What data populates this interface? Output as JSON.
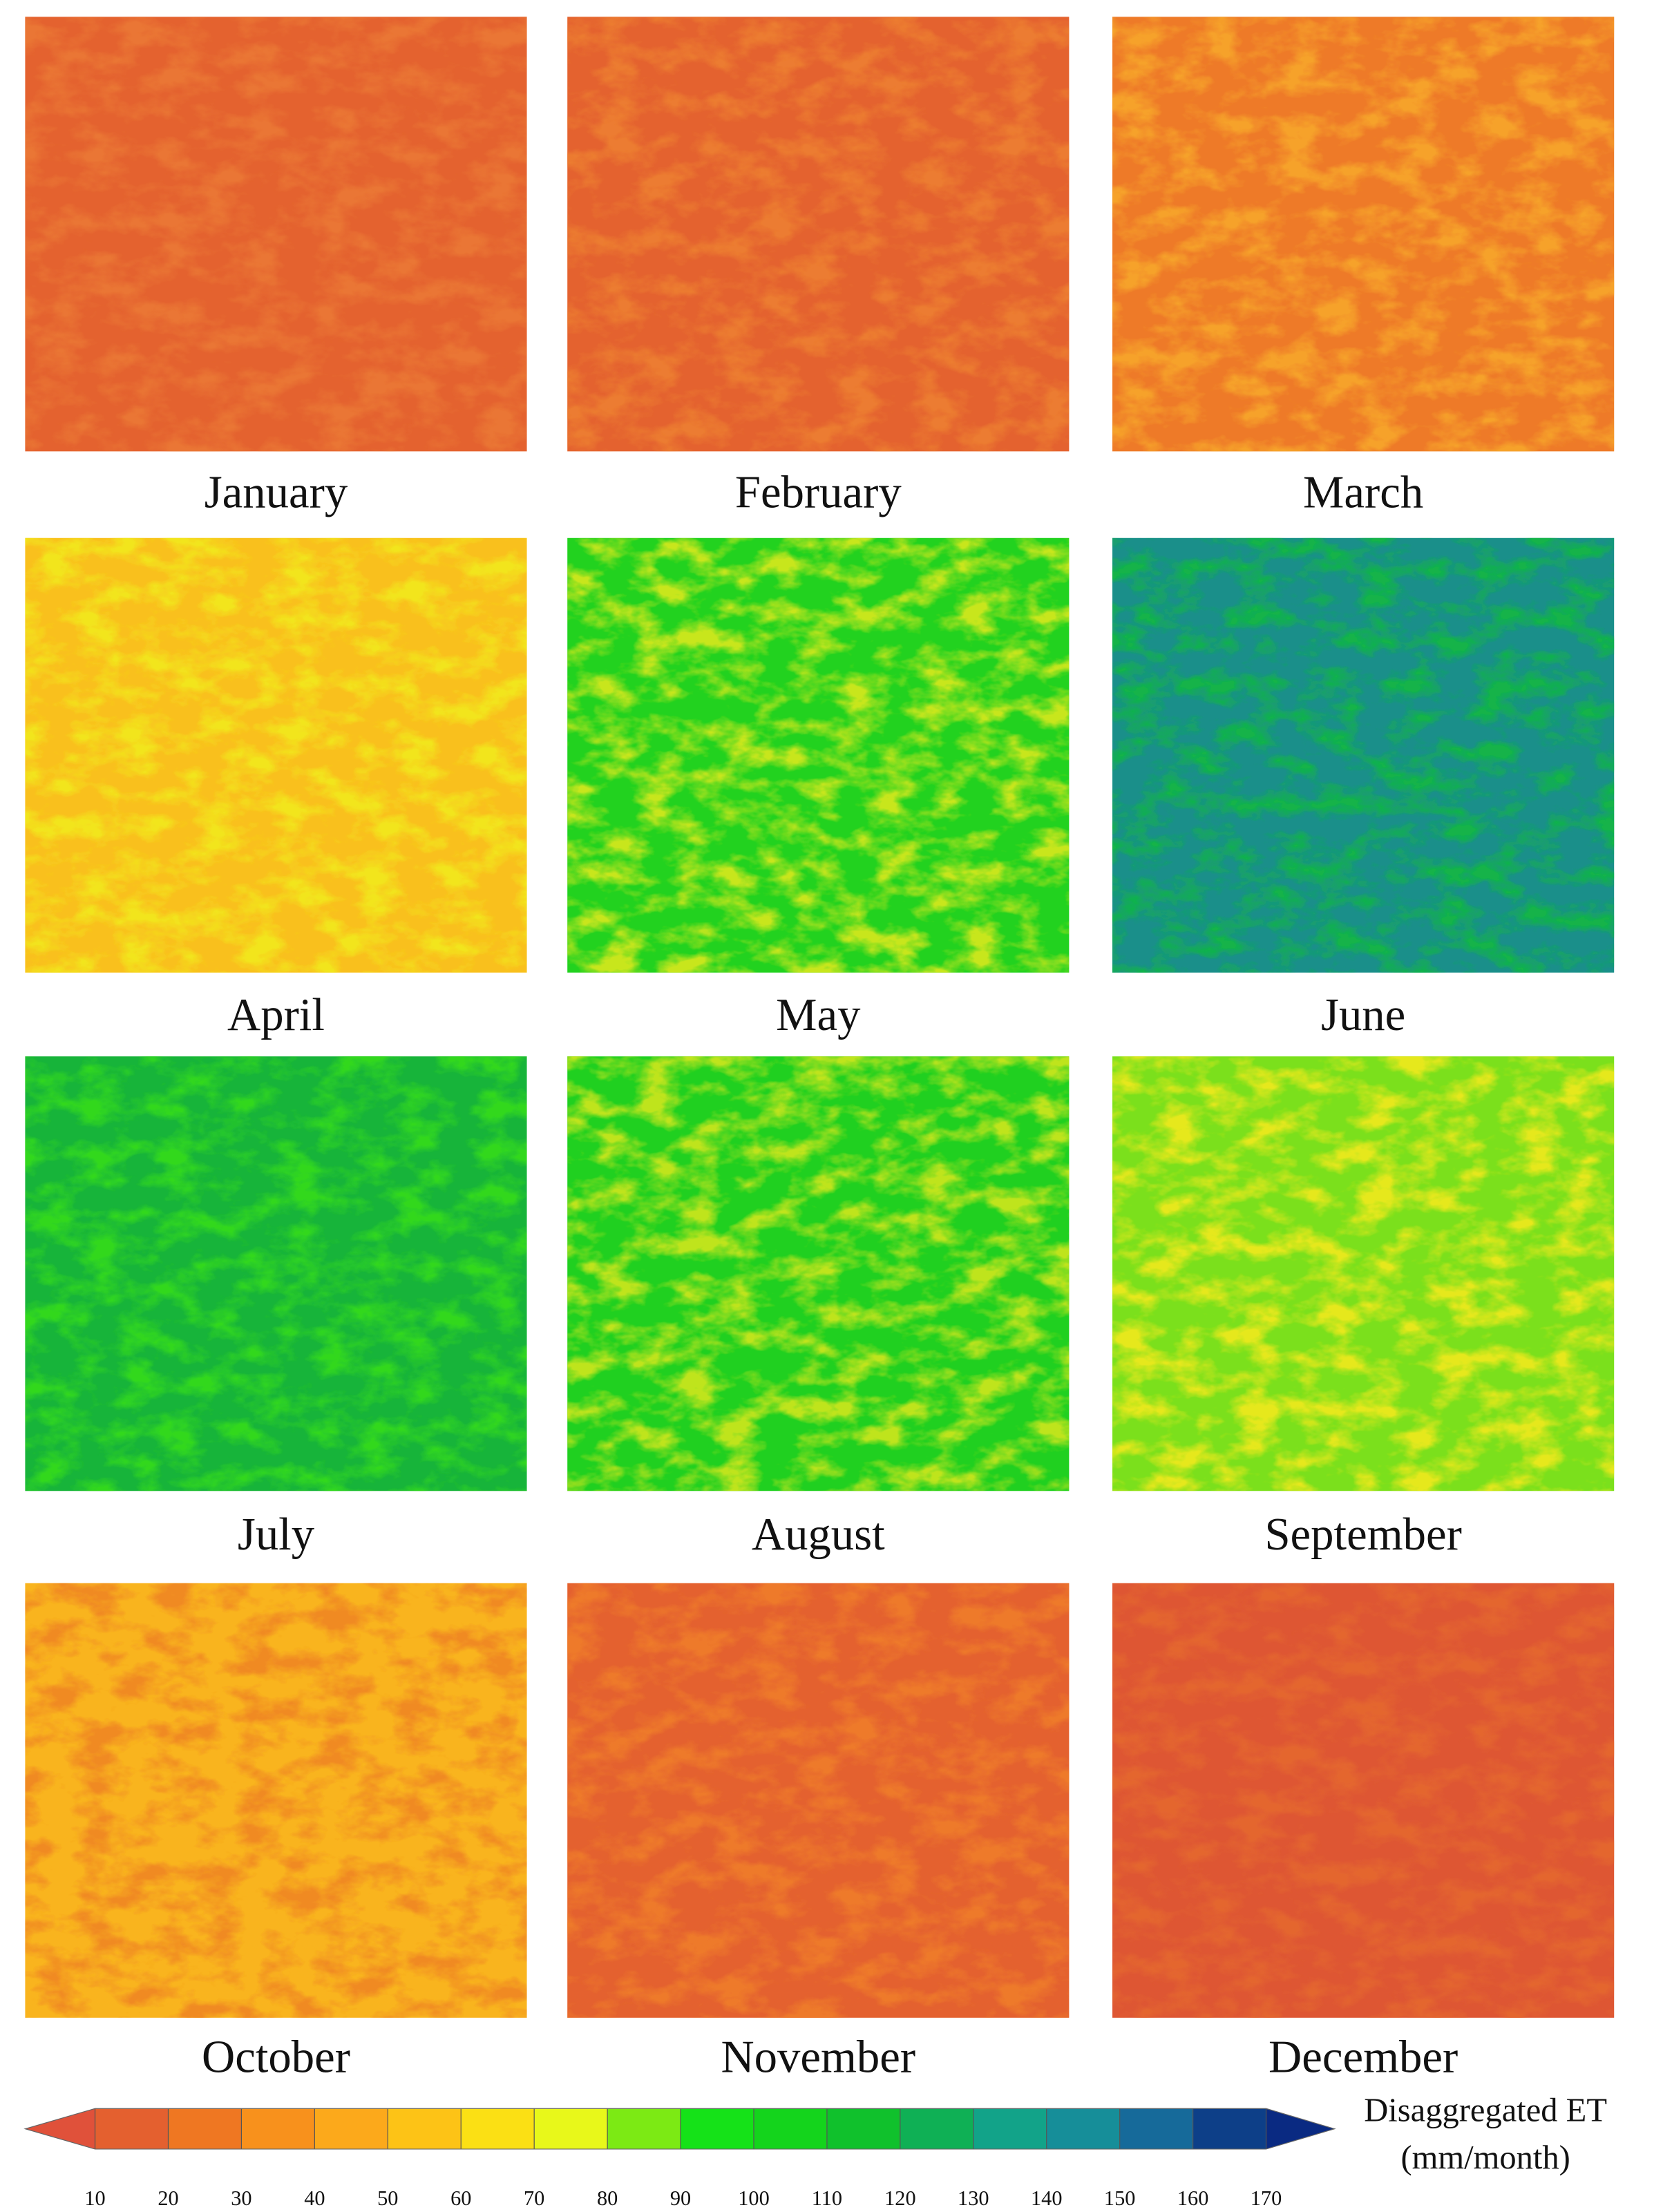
{
  "panels": [
    {
      "label": "January",
      "colors": [
        "#e4622f",
        "#ea7634"
      ]
    },
    {
      "label": "February",
      "colors": [
        "#e4622f",
        "#ec7c30"
      ]
    },
    {
      "label": "March",
      "colors": [
        "#ee7a28",
        "#f6a22a"
      ]
    },
    {
      "label": "April",
      "colors": [
        "#f9c01d",
        "#f2e51c"
      ]
    },
    {
      "label": "May",
      "colors": [
        "#22d21f",
        "#c8e61d"
      ]
    },
    {
      "label": "June",
      "colors": [
        "#1a8f8a",
        "#12b34a"
      ]
    },
    {
      "label": "July",
      "colors": [
        "#17b43a",
        "#32d81f"
      ]
    },
    {
      "label": "August",
      "colors": [
        "#20d020",
        "#bfe41d"
      ]
    },
    {
      "label": "September",
      "colors": [
        "#7be01c",
        "#e6e81c"
      ]
    },
    {
      "label": "October",
      "colors": [
        "#f9b41e",
        "#f08a22"
      ]
    },
    {
      "label": "November",
      "colors": [
        "#e4612f",
        "#ee7a2a"
      ]
    },
    {
      "label": "December",
      "colors": [
        "#de5633",
        "#e4662f"
      ]
    }
  ],
  "colorbar": {
    "title": [
      "Disaggregated ET",
      "(mm/month)"
    ],
    "ticks": [
      10,
      20,
      30,
      40,
      50,
      60,
      70,
      80,
      90,
      100,
      110,
      120,
      130,
      140,
      150,
      160,
      170
    ],
    "colors": [
      "#e4602f",
      "#ef7722",
      "#f8911c",
      "#fca91b",
      "#fdc316",
      "#fbe014",
      "#e8f81a",
      "#7cea14",
      "#15e218",
      "#14d41c",
      "#10c12c",
      "#0fb055",
      "#12a389",
      "#168e99",
      "#166a9a",
      "#0d3f88"
    ],
    "under_color": "#e0513a",
    "over_color": "#0a2a82"
  }
}
